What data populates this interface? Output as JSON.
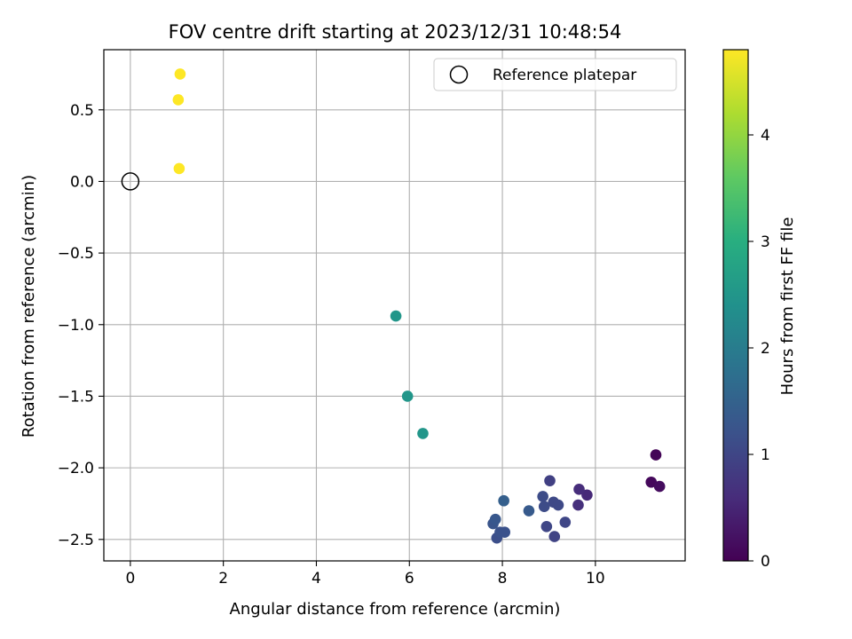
{
  "chart_data": {
    "type": "scatter",
    "title": "FOV centre drift starting at 2023/12/31 10:48:54",
    "xlabel": "Angular distance from reference (arcmin)",
    "ylabel": "Rotation from reference (arcmin)",
    "xlim": [
      -0.57,
      11.93
    ],
    "ylim": [
      -2.65,
      0.92
    ],
    "x_ticks": [
      0,
      2,
      4,
      6,
      8,
      10
    ],
    "x_tick_labels": [
      "0",
      "2",
      "4",
      "6",
      "8",
      "10"
    ],
    "y_ticks": [
      0.5,
      0.0,
      -0.5,
      -1.0,
      -1.5,
      -2.0,
      -2.5
    ],
    "y_tick_labels": [
      "0.5",
      "0.0",
      "−0.5",
      "−1.0",
      "−1.5",
      "−2.0",
      "−2.5"
    ],
    "grid": true,
    "legend": {
      "placement": "top-right",
      "entries": [
        {
          "label": "Reference platepar",
          "marker": "open-circle"
        }
      ]
    },
    "reference_point": {
      "x": 0,
      "y": 0
    },
    "colormap": "viridis",
    "colorbar": {
      "label": "Hours from first FF file",
      "min": 0,
      "max": 4.8,
      "ticks": [
        0,
        1,
        2,
        3,
        4
      ],
      "tick_labels": [
        "0",
        "1",
        "2",
        "3",
        "4"
      ]
    },
    "points": [
      {
        "x": 11.3,
        "y": -1.91,
        "hours": 0.05
      },
      {
        "x": 11.2,
        "y": -2.1,
        "hours": 0.1
      },
      {
        "x": 11.38,
        "y": -2.13,
        "hours": 0.15
      },
      {
        "x": 9.82,
        "y": -2.19,
        "hours": 0.55
      },
      {
        "x": 9.65,
        "y": -2.15,
        "hours": 0.6
      },
      {
        "x": 9.63,
        "y": -2.26,
        "hours": 0.65
      },
      {
        "x": 9.02,
        "y": -2.09,
        "hours": 0.9
      },
      {
        "x": 9.12,
        "y": -2.48,
        "hours": 0.95
      },
      {
        "x": 9.35,
        "y": -2.38,
        "hours": 1.0
      },
      {
        "x": 8.95,
        "y": -2.41,
        "hours": 1.0
      },
      {
        "x": 9.1,
        "y": -2.24,
        "hours": 1.05
      },
      {
        "x": 9.2,
        "y": -2.26,
        "hours": 1.05
      },
      {
        "x": 8.87,
        "y": -2.2,
        "hours": 1.1
      },
      {
        "x": 8.9,
        "y": -2.27,
        "hours": 1.1
      },
      {
        "x": 7.88,
        "y": -2.49,
        "hours": 1.15
      },
      {
        "x": 7.95,
        "y": -2.45,
        "hours": 1.2
      },
      {
        "x": 8.05,
        "y": -2.45,
        "hours": 1.2
      },
      {
        "x": 7.8,
        "y": -2.39,
        "hours": 1.25
      },
      {
        "x": 7.85,
        "y": -2.36,
        "hours": 1.3
      },
      {
        "x": 8.57,
        "y": -2.3,
        "hours": 1.35
      },
      {
        "x": 8.03,
        "y": -2.23,
        "hours": 1.45
      },
      {
        "x": 6.29,
        "y": -1.76,
        "hours": 2.5
      },
      {
        "x": 5.96,
        "y": -1.5,
        "hours": 2.5
      },
      {
        "x": 5.71,
        "y": -0.94,
        "hours": 2.5
      },
      {
        "x": 1.07,
        "y": 0.75,
        "hours": 4.8
      },
      {
        "x": 1.03,
        "y": 0.57,
        "hours": 4.8
      },
      {
        "x": 1.05,
        "y": 0.09,
        "hours": 4.8
      }
    ]
  }
}
